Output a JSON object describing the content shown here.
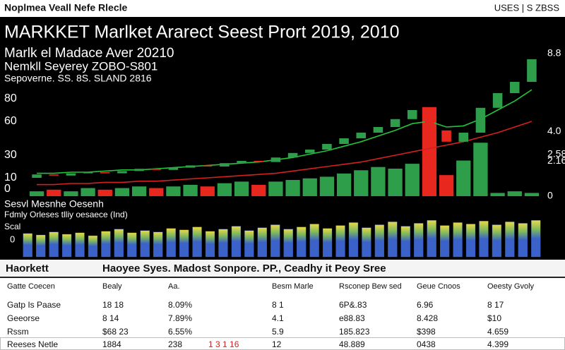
{
  "header": {
    "left": "Noplmea Veall Nefe Rlecle",
    "right": "USES | S ZBSS"
  },
  "chart_data": [
    {
      "type": "candlestick",
      "title": "MARKKET Marlket Ararect Seest Prort 2019,  2010",
      "subtitles": [
        "Marlk el Madace Aver 20210",
        "Nemkll Seyerey ZOBO-S801",
        "Sepoverne.   SS. 8S. SLAND 2816"
      ],
      "open": [
        10,
        13,
        12,
        14,
        15,
        14,
        16,
        18,
        17,
        19,
        21,
        20,
        23,
        25,
        24,
        28,
        32,
        35,
        40,
        45,
        50,
        55,
        62,
        70,
        52,
        42,
        50,
        72,
        85,
        95
      ],
      "close": [
        13,
        12,
        14,
        15,
        14,
        16,
        18,
        17,
        19,
        21,
        20,
        23,
        25,
        24,
        28,
        32,
        35,
        40,
        45,
        50,
        55,
        62,
        70,
        52,
        42,
        50,
        72,
        85,
        95,
        115
      ],
      "up_color": "#2e9e4a",
      "down_color": "#e8281e",
      "ma_lines": [
        {
          "color": "#22c43c",
          "values": [
            14,
            14,
            15,
            15,
            16,
            17,
            17,
            18,
            19,
            20,
            21,
            22,
            23,
            24,
            26,
            28,
            31,
            34,
            38,
            42,
            47,
            52,
            58,
            60,
            55,
            56,
            62,
            70,
            78,
            88
          ]
        },
        {
          "color": "#d42020",
          "values": [
            4,
            4,
            5,
            5,
            6,
            6,
            7,
            7,
            8,
            9,
            10,
            11,
            12,
            13,
            14,
            16,
            18,
            20,
            22,
            24,
            27,
            30,
            33,
            36,
            39,
            42,
            46,
            50,
            55,
            60
          ]
        }
      ],
      "volume": [
        0.3,
        0.4,
        0.3,
        0.5,
        0.4,
        0.5,
        0.6,
        0.5,
        0.6,
        0.7,
        0.6,
        0.8,
        0.9,
        0.7,
        0.9,
        1.0,
        1.1,
        1.2,
        1.4,
        1.6,
        1.8,
        1.7,
        2.0,
        5.5,
        1.3,
        2.2,
        3.3,
        0.2,
        0.3,
        0.2
      ],
      "volume_axis": "y2",
      "ylim": [
        0,
        125
      ],
      "yticks": [
        80,
        60,
        30,
        10,
        0
      ],
      "y2lim": [
        0,
        8.8
      ],
      "y2ticks": [
        8.8,
        {
          "value": 4,
          "label": "4.0"
        },
        2.58,
        2.16,
        0
      ]
    },
    {
      "type": "bar",
      "titles": [
        "Sesvl Mesnhe Oesenh",
        "Fdmly Orleses tlliy oesaece (Ind)",
        "Scal"
      ],
      "values": [
        32,
        30,
        34,
        31,
        33,
        29,
        35,
        38,
        33,
        36,
        34,
        39,
        37,
        41,
        35,
        38,
        42,
        36,
        40,
        44,
        38,
        41,
        45,
        39,
        43,
        47,
        40,
        44,
        48,
        42,
        46,
        50,
        43,
        47,
        45,
        49,
        44,
        48,
        46,
        50
      ],
      "color": "#3a62c8",
      "ylim": [
        0,
        60
      ],
      "yticks": [
        0
      ]
    }
  ],
  "table": {
    "title": "Haorkett",
    "caption": "Haoyee Syes. Madost Sonpore. PP., Ceadhy it Peoy Sree",
    "columns": [
      "Gatte Coecen",
      "Bealy",
      "Aa.",
      "Besm Marle",
      "Rsconep Bew sed",
      "Geue Cnoos",
      "Oeesty Gvoly"
    ],
    "rows": [
      [
        "Gatp Is Paase",
        "18 18",
        "8.09%",
        "8 1",
        "6P&.83",
        "6.96",
        "8 17"
      ],
      [
        "Geeorse",
        "8 14",
        "7.89%",
        "4.1",
        "e88.83",
        "8.428",
        "$10"
      ],
      [
        "Rssm",
        "$68 23",
        "6.55%",
        "5.9",
        "185.823",
        "$398",
        "4.659"
      ],
      [
        "Reeses Netle",
        "1884",
        "238",
        "12",
        "48.889",
        "0438",
        "4.399"
      ]
    ],
    "flag": "1 3 1 16"
  }
}
